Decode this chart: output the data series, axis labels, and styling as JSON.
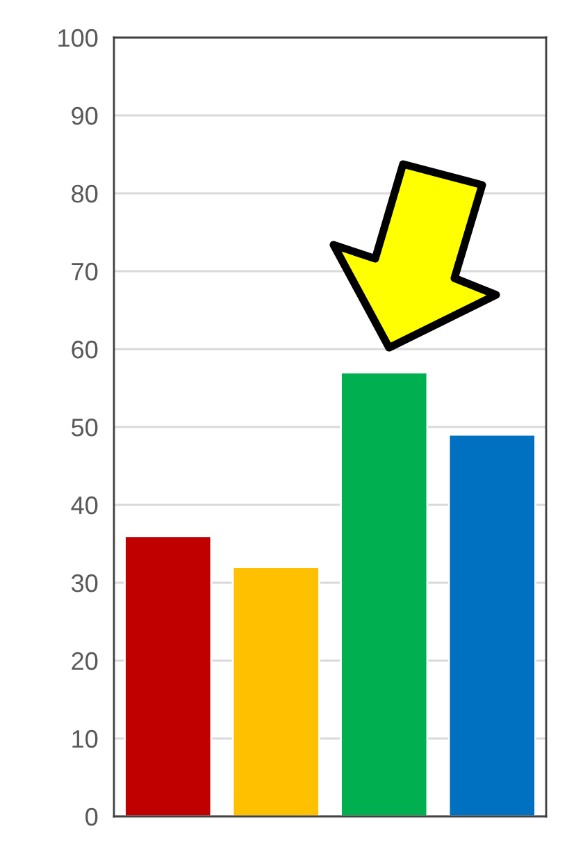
{
  "chart_data": {
    "type": "bar",
    "categories": [
      null,
      null,
      null,
      null
    ],
    "values": [
      36,
      32,
      57,
      49
    ],
    "colors": [
      "#c00000",
      "#ffc000",
      "#00b050",
      "#0070c0"
    ],
    "ylim": [
      0,
      100
    ],
    "yticks": [
      0,
      10,
      20,
      30,
      40,
      50,
      60,
      70,
      80,
      90,
      100
    ],
    "grid": "y"
  }
}
